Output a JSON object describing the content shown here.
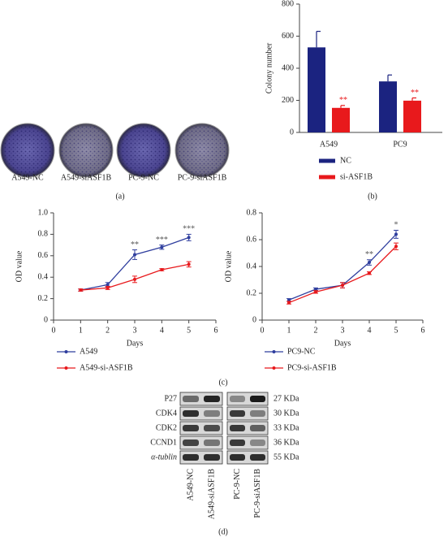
{
  "panel_a": {
    "labels": [
      "A549-NC",
      "A549-siASF1B",
      "PC-9-NC",
      "PC-9-siASF1B"
    ],
    "caption": "(a)"
  },
  "chart_data": [
    {
      "type": "bar",
      "ylabel": "Colony number",
      "categories": [
        "A549",
        "PC9"
      ],
      "ylim": [
        0,
        800
      ],
      "yticks": [
        0,
        200,
        400,
        600,
        800
      ],
      "legend": "bottom",
      "caption": "(b)",
      "series": [
        {
          "name": "NC",
          "color": "#1b2380",
          "values": [
            530,
            318
          ],
          "errors": [
            100,
            40
          ]
        },
        {
          "name": "si-ASF1B",
          "color": "#e8191c",
          "values": [
            153,
            198
          ],
          "errors": [
            15,
            17
          ],
          "annotations": [
            "**",
            "**"
          ]
        }
      ]
    },
    {
      "type": "line",
      "xlabel": "Days",
      "ylabel": "OD value",
      "x": [
        1,
        2,
        3,
        4,
        5
      ],
      "xlim": [
        0,
        6
      ],
      "xticks": [
        0,
        1,
        2,
        3,
        4,
        5,
        6
      ],
      "ylim": [
        0,
        1
      ],
      "yticks": [
        0,
        0.2,
        0.4,
        0.6,
        0.8,
        {
          "value": 1,
          "label": "1.0"
        }
      ],
      "legend": "bottom",
      "series": [
        {
          "name": "A549",
          "color": "#2f3e9e",
          "values": [
            0.28,
            0.33,
            0.61,
            0.68,
            0.77
          ],
          "errors": [
            0.01,
            0.02,
            0.045,
            0.02,
            0.03
          ],
          "annotations": [
            null,
            null,
            "**",
            "***",
            "***"
          ]
        },
        {
          "name": "A549-si-ASF1B",
          "color": "#e8191c",
          "values": [
            0.28,
            0.3,
            0.38,
            0.47,
            0.52
          ],
          "errors": [
            0.01,
            0.015,
            0.03,
            0.01,
            0.025
          ]
        }
      ]
    },
    {
      "type": "line",
      "xlabel": "Days",
      "ylabel": "OD value",
      "x": [
        1,
        2,
        3,
        4,
        5
      ],
      "xlim": [
        0,
        6
      ],
      "xticks": [
        0,
        1,
        2,
        3,
        4,
        5,
        6
      ],
      "ylim": [
        0,
        0.8
      ],
      "yticks": [
        0,
        0.2,
        0.4,
        0.6,
        0.8
      ],
      "legend": "bottom",
      "series": [
        {
          "name": "PC9-NC",
          "color": "#2f3e9e",
          "values": [
            0.15,
            0.23,
            0.26,
            0.43,
            0.64
          ],
          "errors": [
            0.01,
            0.01,
            0.02,
            0.02,
            0.03
          ],
          "annotations": [
            null,
            null,
            null,
            "**",
            "*"
          ]
        },
        {
          "name": "PC9-si-ASF1B",
          "color": "#e8191c",
          "values": [
            0.13,
            0.21,
            0.26,
            0.35,
            0.55
          ],
          "errors": [
            0.01,
            0.01,
            0.02,
            0.01,
            0.025
          ]
        }
      ]
    }
  ],
  "panel_c": {
    "caption": "(c)"
  },
  "blot": {
    "proteins": [
      "P27",
      "CDK4",
      "CDK2",
      "CCND1",
      "α-tublin"
    ],
    "sizes": [
      "27 KDa",
      "30 KDa",
      "33 KDa",
      "36 KDa",
      "55 KDa"
    ],
    "lanes": [
      "A549-NC",
      "A549-siASF1B",
      "PC-9-NC",
      "PC-9-siASF1B"
    ],
    "caption": "(d)"
  }
}
